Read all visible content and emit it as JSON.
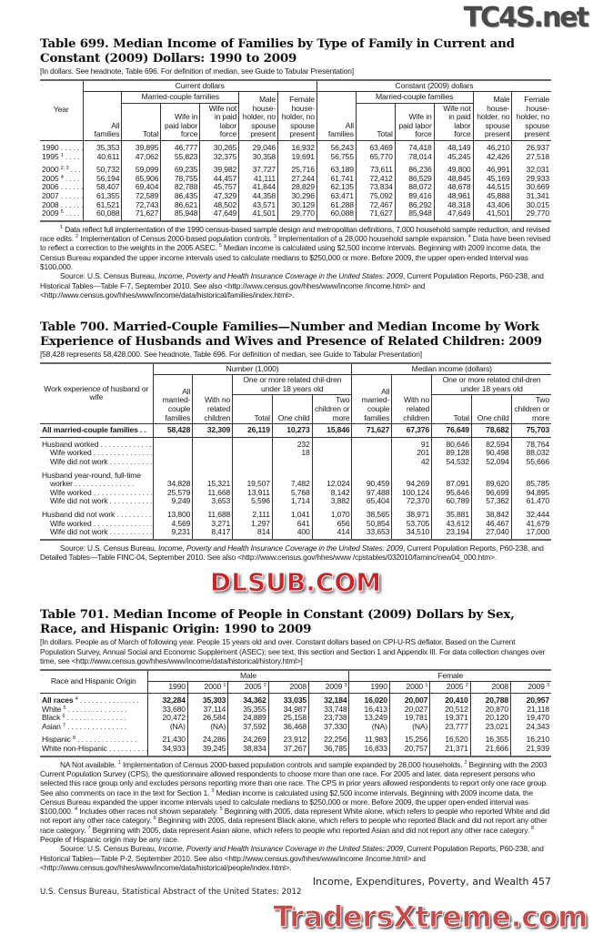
{
  "watermarks": {
    "top": "TC4S.net",
    "middle": "DLSUB.COM",
    "bottom": "TradersXtreme.com"
  },
  "t699": {
    "title": "Table 699. Median Income of Families by Type of Family in Current and Constant (2009) Dollars: 1990 to 2009",
    "headnote": "[In dollars. See headnote, Table 696. For definition of median, see Guide to Tabular Presentation]",
    "hdr": {
      "year": "Year",
      "current": "Current dollars",
      "constant": "Constant (2009) dollars",
      "married": "Married-couple families",
      "all": "All families",
      "total": "Total",
      "wife_in": "Wife in paid labor force",
      "wife_not": "Wife not in paid labor force",
      "male": "Male house-holder, no spouse present",
      "female": "Female house-holder, no spouse present"
    },
    "rows": [
      {
        "label": "1990",
        "sup": "",
        "values": [
          "35,353",
          "39,895",
          "46,777",
          "30,265",
          "29,046",
          "16,932",
          "56,243",
          "63,469",
          "74,418",
          "48,149",
          "46,210",
          "26,937"
        ]
      },
      {
        "label": "1995",
        "sup": "1",
        "values": [
          "40,611",
          "47,062",
          "55,823",
          "32,375",
          "30,358",
          "19,691",
          "56,755",
          "65,770",
          "78,014",
          "45,245",
          "42,426",
          "27,518"
        ]
      },
      {
        "label": "2000",
        "sup": "2, 3",
        "gap": true,
        "values": [
          "50,732",
          "59,099",
          "69,235",
          "39,982",
          "37,727",
          "25,716",
          "63,189",
          "73,611",
          "86,236",
          "49,800",
          "46,991",
          "32,031"
        ]
      },
      {
        "label": "2005",
        "sup": "4",
        "values": [
          "56,194",
          "65,906",
          "78,755",
          "44,457",
          "41,111",
          "27,244",
          "61,741",
          "72,412",
          "86,529",
          "48,845",
          "45,169",
          "29,933"
        ]
      },
      {
        "label": "2006",
        "sup": "",
        "values": [
          "58,407",
          "69,404",
          "82,788",
          "45,757",
          "41,844",
          "28,829",
          "62,135",
          "73,834",
          "88,072",
          "48,678",
          "44,515",
          "30,669"
        ]
      },
      {
        "label": "2007",
        "sup": "",
        "values": [
          "61,355",
          "72,589",
          "86,435",
          "47,329",
          "44,358",
          "30,296",
          "63,471",
          "75,092",
          "89,416",
          "48,961",
          "45,888",
          "31,341"
        ]
      },
      {
        "label": "2008",
        "sup": "",
        "values": [
          "61,521",
          "72,743",
          "86,621",
          "48,502",
          "43,571",
          "30,129",
          "61,288",
          "72,467",
          "86,292",
          "48,318",
          "43,406",
          "30,015"
        ]
      },
      {
        "label": "2009",
        "sup": "5",
        "values": [
          "60,088",
          "71,627",
          "85,948",
          "47,649",
          "41,501",
          "29,770",
          "60,088",
          "71,627",
          "85,948",
          "47,649",
          "41,501",
          "29,770"
        ]
      }
    ],
    "notes": [
      {
        "indent": true,
        "parts": [
          {
            "sup": "1"
          },
          {
            "t": " Data reflect full implementation of the 1990 census-based sample design and metropolitan definitions, 7,000 household sample reduction, and revised race edits. "
          },
          {
            "sup": "2"
          },
          {
            "t": " Implementation of Census 2000-based population controls. "
          },
          {
            "sup": "3"
          },
          {
            "t": " Implementation of a 28,000 household sample expansion. "
          },
          {
            "sup": "4"
          },
          {
            "t": " Data have been revised to reflect a correction to the weights in the 2005 ASEC. "
          },
          {
            "sup": "5"
          },
          {
            "t": " Median income is calculated using $2,500 income intervals. Beginning with 2009 income data, the Census Bureau expanded the upper income intervals used to calculate medians to $250,000 or more. Before 2009, the upper open-ended interval was $100,000."
          }
        ]
      },
      {
        "indent": true,
        "parts": [
          {
            "t": "Source: U.S. Census Bureau, "
          },
          {
            "i": "Income, Poverty and Health Insurance Coverage in the United States: 2009"
          },
          {
            "t": ", Current Population Reports, P60-238, and Historical Tables—Table F-7, September 2010. See also <http://www.census.gov/hhes/www/income /income.html> and <http://www.census.gov/hhes/www/income/data/historical/families/index.html>."
          }
        ]
      }
    ]
  },
  "t700": {
    "title": "Table 700. Married-Couple Families—Number and Median Income by Work Experience of Husbands and Wives and Presence of Related Children: 2009",
    "headnote": "[58,428 represents 58,428,000. See headnote, Table 696. For definition of median, see Guide to Tabular Presentation]",
    "hdr": {
      "work": "Work experience of husband or wife",
      "number": "Number (1,000)",
      "median": "Median income (dollars)",
      "one_more": "One or more related chil-dren under 18 years old",
      "all": "All married-couple families",
      "no_children": "With no related children",
      "total": "Total",
      "one": "One child",
      "two": "Two children or more"
    },
    "rows": [
      {
        "label": "All married-couple families",
        "bold": true,
        "values": [
          "58,428",
          "32,309",
          "26,119",
          "10,273",
          "15,846",
          "71,627",
          "67,376",
          "76,649",
          "78,682",
          "75,703"
        ]
      },
      {
        "label": "Husband worked",
        "first": true,
        "values": [
          "",
          "",
          "",
          "232",
          "",
          "",
          "91",
          "80,646",
          "82,594",
          "78,764"
        ]
      },
      {
        "label": "Wife worked",
        "ind": true,
        "values": [
          "",
          "",
          "",
          "18",
          "",
          "",
          "201",
          "89,128",
          "90,498",
          "88,032"
        ]
      },
      {
        "label": "Wife did not work",
        "ind": true,
        "values": [
          "",
          "",
          "",
          "",
          "",
          "",
          "42",
          "54,532",
          "52,094",
          "55,666"
        ]
      },
      {
        "label": "Husband year-round, full-time",
        "gap": true,
        "header": true,
        "values": []
      },
      {
        "label": "worker",
        "ind": true,
        "values": [
          "34,828",
          "15,321",
          "19,507",
          "7,482",
          "12,024",
          "90,459",
          "94,269",
          "87,091",
          "89,620",
          "85,785"
        ]
      },
      {
        "label": "Wife worked",
        "ind": true,
        "values": [
          "25,579",
          "11,668",
          "13,911",
          "5,768",
          "8,142",
          "97,488",
          "100,124",
          "95,646",
          "96,699",
          "94,895"
        ]
      },
      {
        "label": "Wife did not work",
        "ind": true,
        "values": [
          "9,249",
          "3,653",
          "5,596",
          "1,714",
          "3,882",
          "65,404",
          "72,370",
          "60,789",
          "57,362",
          "61,470"
        ]
      },
      {
        "label": "Husband did not work",
        "gap": true,
        "values": [
          "13,800",
          "11,688",
          "2,111",
          "1,041",
          "1,070",
          "38,565",
          "38,971",
          "35,881",
          "38,842",
          "32,444"
        ]
      },
      {
        "label": "Wife worked",
        "ind": true,
        "values": [
          "4,569",
          "3,271",
          "1,297",
          "641",
          "656",
          "50,854",
          "53,705",
          "43,612",
          "46,467",
          "41,679"
        ]
      },
      {
        "label": "Wife did not work",
        "ind": true,
        "values": [
          "9,231",
          "8,417",
          "814",
          "400",
          "414",
          "33,653",
          "34,510",
          "23,194",
          "27,040",
          "17,000"
        ]
      }
    ],
    "notes": [
      {
        "indent": true,
        "parts": [
          {
            "t": "Source: U.S. Census Bureau, "
          },
          {
            "i": "Income, Poverty and Health Insurance Coverage in the United States: 2009"
          },
          {
            "t": ", Current Population Reports, P60-238, and Detailed Tables—Table FINC-04, September 2010. See also <http://www.census.gov/hhes/www /cpstables/032010/faminc/new04_000.htm>."
          }
        ]
      }
    ]
  },
  "t701": {
    "title": "Table 701. Median Income of People in Constant (2009) Dollars by Sex, Race, and Hispanic Origin: 1990 to 2009",
    "headnote": "[In dollars. People as of March of following year. People 15 years old and over. Constant dollars based on CPI-U-RS deflator. Based on the Current Population Survey, Annual Social and Economic Supplement (ASEC); see text, this section and Section 1 and Appendix III. For data collection changes over time, see <http://www.census.gov/hhes/www/income/data/historical/history.html>]",
    "hdr": {
      "race": "Race and Hispanic Origin",
      "male": "Male",
      "female": "Female",
      "years": [
        {
          "y": "1990",
          "s": ""
        },
        {
          "y": "2000",
          "s": "1"
        },
        {
          "y": "2005",
          "s": "2"
        },
        {
          "y": "2008",
          "s": ""
        },
        {
          "y": "2009",
          "s": "3"
        }
      ]
    },
    "rows": [
      {
        "label": "All races",
        "sup": "4",
        "bold2": true,
        "values": [
          "32,284",
          "35,303",
          "34,362",
          "33,035",
          "32,184",
          "16,020",
          "20,007",
          "20,410",
          "20,788",
          "20,957"
        ]
      },
      {
        "label": "White",
        "sup": "5",
        "values": [
          "33,680",
          "37,114",
          "35,355",
          "34,987",
          "33,748",
          "16,413",
          "20,027",
          "20,512",
          "20,870",
          "21,118"
        ]
      },
      {
        "label": "Black",
        "sup": "6",
        "values": [
          "20,472",
          "26,584",
          "24,889",
          "25,158",
          "23,738",
          "13,249",
          "19,781",
          "19,371",
          "20,120",
          "19,470"
        ]
      },
      {
        "label": "Asian",
        "sup": "7",
        "values": [
          "(NA)",
          "(NA)",
          "37,592",
          "36,468",
          "37,330",
          "(NA)",
          "(NA)",
          "23,777",
          "23,021",
          "24,343"
        ]
      },
      {
        "label": "Hispanic",
        "sup": "8",
        "gap": true,
        "values": [
          "21,430",
          "24,286",
          "24,269",
          "23,912",
          "22,256",
          "11,983",
          "15,256",
          "16,520",
          "16,355",
          "16,210"
        ]
      },
      {
        "label": "White non-Hispanic",
        "sup": "",
        "values": [
          "34,933",
          "39,245",
          "38,834",
          "37,267",
          "36,785",
          "16,833",
          "20,757",
          "21,371",
          "21,666",
          "21,939"
        ]
      }
    ],
    "notes": [
      {
        "indent": true,
        "parts": [
          {
            "t": "NA Not available. "
          },
          {
            "sup": "1"
          },
          {
            "t": " Implementation of Census 2000-based population controls and sample expanded by 28,000 households. "
          },
          {
            "sup": "2"
          },
          {
            "t": " Beginning with the 2003 Current Population Survey (CPS), the questionnaire allowed respondents to choose more than one race. For 2005 and later, data represent persons who selected this race group only and excludes persons reporting more than one race. The CPS in prior years allowed respondents to report only one race group. See also comments on race in the text for Section 1. "
          },
          {
            "sup": "3"
          },
          {
            "t": " Median income is calculated using $2,500 income intervals. Beginning with 2009 income data, the Census Bureau expanded the upper income intervals used to calculate medians to $250,000 or more. Before 2009, the upper open-ended interval was $100,000. "
          },
          {
            "sup": "4"
          },
          {
            "t": " Includes other races not shown separately. "
          },
          {
            "sup": "5"
          },
          {
            "t": " Beginning with 2005, data represent White alone, which refers to people who reported White and did not report any other race category. "
          },
          {
            "sup": "6"
          },
          {
            "t": " Beginning with 2005, data represent Black alone, which refers to people who reported Black and did not report any other race category. "
          },
          {
            "sup": "7"
          },
          {
            "t": " Beginning with 2005, data represent Asian alone, which refers to people who reported Asian and did not report any other race category. "
          },
          {
            "sup": "8"
          },
          {
            "t": " People of Hispanic origin may be any race."
          }
        ]
      },
      {
        "indent": true,
        "parts": [
          {
            "t": "Source: U.S. Census Bureau, "
          },
          {
            "i": "Income, Poverty and Health Insurance Coverage in the United States: 2009"
          },
          {
            "t": ", Current Population Reports, P60-238, and Historical Tables—Table P-2, September 2010. See also <http://www.census.gov/hhes/www/income /income.html> and <http://www.census.gov/hhes/www/income/data/historical/people/index.html>."
          }
        ]
      }
    ]
  },
  "footer": {
    "left": "U.S. Census Bureau, Statistical Abstract of the United States: 2012",
    "right": "Income, Expenditures, Poverty, and Wealth  457"
  }
}
